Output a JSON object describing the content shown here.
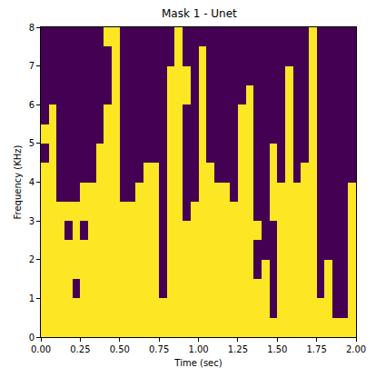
{
  "chart_data": {
    "type": "heatmap",
    "title": "Mask 1 - Unet",
    "x_label": "Time (sec)",
    "y_label": "Frequency (KHz)",
    "xlim": [
      0,
      2
    ],
    "ylim": [
      0,
      8
    ],
    "xticks": [
      {
        "value": 0,
        "label": "0.00"
      },
      0.25,
      {
        "value": 0.5,
        "label": "0.50"
      },
      0.75,
      {
        "value": 1,
        "label": "1.00"
      },
      1.25,
      {
        "value": 1.5,
        "label": "1.50"
      },
      1.75,
      {
        "value": 2,
        "label": "2.00"
      }
    ],
    "yticks": [
      0,
      1,
      2,
      3,
      4,
      5,
      6,
      7,
      8
    ],
    "grid": false,
    "colors": [
      "#440154",
      "#fde725"
    ],
    "color_range": [
      0,
      1
    ],
    "time_edges": [
      0,
      0.05,
      0.1,
      0.15,
      0.2,
      0.25,
      0.3,
      0.35,
      0.4,
      0.45,
      0.5,
      0.55,
      0.6,
      0.65,
      0.7,
      0.75,
      0.8,
      0.85,
      0.9,
      0.95,
      1.0,
      1.05,
      1.1,
      1.15,
      1.2,
      1.25,
      1.3,
      1.35,
      1.4,
      1.45,
      1.5,
      1.55,
      1.6,
      1.65,
      1.7,
      1.75,
      1.8,
      1.85,
      1.9,
      1.95,
      2.0
    ],
    "frequency_edges": [
      0,
      0.5,
      1,
      1.5,
      2,
      2.5,
      3,
      3.5,
      4,
      4.5,
      5,
      5.5,
      6,
      6.5,
      7,
      7.5,
      8
    ],
    "cells_by_time": [
      [
        1,
        1,
        1,
        1,
        1,
        1,
        1,
        1,
        1,
        0,
        1,
        0,
        0,
        0,
        0,
        0
      ],
      [
        1,
        1,
        1,
        1,
        1,
        1,
        1,
        1,
        1,
        1,
        1,
        1,
        0,
        0,
        0,
        0
      ],
      [
        1,
        1,
        1,
        1,
        1,
        1,
        1,
        0,
        0,
        0,
        0,
        0,
        0,
        0,
        0,
        0
      ],
      [
        1,
        1,
        1,
        1,
        1,
        0,
        1,
        0,
        0,
        0,
        0,
        0,
        0,
        0,
        0,
        0
      ],
      [
        1,
        1,
        0,
        1,
        1,
        1,
        1,
        0,
        0,
        0,
        0,
        0,
        0,
        0,
        0,
        0
      ],
      [
        1,
        1,
        1,
        1,
        1,
        0,
        1,
        1,
        0,
        0,
        0,
        0,
        0,
        0,
        0,
        0
      ],
      [
        1,
        1,
        1,
        1,
        1,
        1,
        1,
        1,
        0,
        0,
        0,
        0,
        0,
        0,
        0,
        0
      ],
      [
        1,
        1,
        1,
        1,
        1,
        1,
        1,
        1,
        1,
        1,
        0,
        0,
        0,
        0,
        0,
        0
      ],
      [
        1,
        1,
        1,
        1,
        1,
        1,
        1,
        1,
        1,
        1,
        1,
        1,
        0,
        0,
        0,
        1
      ],
      [
        1,
        1,
        1,
        1,
        1,
        1,
        1,
        1,
        1,
        1,
        1,
        1,
        1,
        1,
        1,
        1
      ],
      [
        1,
        1,
        1,
        1,
        1,
        1,
        1,
        0,
        0,
        0,
        0,
        0,
        0,
        0,
        0,
        0
      ],
      [
        1,
        1,
        1,
        1,
        1,
        1,
        1,
        0,
        0,
        0,
        0,
        0,
        0,
        0,
        0,
        0
      ],
      [
        1,
        1,
        1,
        1,
        1,
        1,
        1,
        1,
        0,
        0,
        0,
        0,
        0,
        0,
        0,
        0
      ],
      [
        1,
        1,
        1,
        1,
        1,
        1,
        1,
        1,
        1,
        0,
        0,
        0,
        0,
        0,
        0,
        0
      ],
      [
        1,
        1,
        1,
        1,
        1,
        1,
        1,
        1,
        1,
        0,
        0,
        0,
        0,
        0,
        0,
        0
      ],
      [
        1,
        1,
        0,
        0,
        0,
        0,
        0,
        0,
        0,
        0,
        0,
        0,
        0,
        0,
        0,
        0
      ],
      [
        1,
        1,
        1,
        1,
        1,
        1,
        1,
        1,
        1,
        1,
        1,
        1,
        1,
        1,
        0,
        0
      ],
      [
        1,
        1,
        1,
        1,
        1,
        1,
        1,
        1,
        1,
        1,
        1,
        1,
        1,
        1,
        1,
        1
      ],
      [
        1,
        1,
        1,
        1,
        1,
        1,
        0,
        0,
        0,
        0,
        0,
        0,
        1,
        1,
        0,
        0
      ],
      [
        1,
        1,
        1,
        1,
        1,
        1,
        1,
        0,
        0,
        0,
        0,
        0,
        0,
        0,
        0,
        0
      ],
      [
        1,
        1,
        1,
        1,
        1,
        1,
        1,
        1,
        1,
        1,
        1,
        1,
        1,
        1,
        1,
        0
      ],
      [
        1,
        1,
        1,
        1,
        1,
        1,
        1,
        1,
        1,
        0,
        0,
        0,
        0,
        0,
        0,
        0
      ],
      [
        1,
        1,
        1,
        1,
        1,
        1,
        1,
        1,
        0,
        0,
        0,
        0,
        0,
        0,
        0,
        0
      ],
      [
        1,
        1,
        1,
        1,
        1,
        1,
        1,
        1,
        0,
        0,
        0,
        0,
        0,
        0,
        0,
        0
      ],
      [
        1,
        1,
        1,
        1,
        1,
        1,
        1,
        0,
        0,
        0,
        0,
        0,
        0,
        0,
        0,
        0
      ],
      [
        1,
        1,
        1,
        1,
        1,
        1,
        1,
        1,
        1,
        1,
        1,
        1,
        0,
        0,
        0,
        0
      ],
      [
        1,
        1,
        1,
        1,
        1,
        1,
        1,
        1,
        1,
        1,
        1,
        1,
        1,
        0,
        0,
        0
      ],
      [
        1,
        1,
        1,
        0,
        0,
        1,
        0,
        0,
        0,
        0,
        0,
        0,
        0,
        0,
        0,
        0
      ],
      [
        1,
        1,
        1,
        1,
        0,
        0,
        0,
        0,
        0,
        0,
        0,
        0,
        0,
        0,
        0,
        0
      ],
      [
        1,
        0,
        0,
        0,
        0,
        0,
        1,
        1,
        1,
        1,
        0,
        0,
        0,
        0,
        0,
        0
      ],
      [
        1,
        1,
        1,
        1,
        1,
        1,
        1,
        1,
        0,
        0,
        0,
        0,
        0,
        0,
        0,
        0
      ],
      [
        1,
        1,
        1,
        1,
        1,
        1,
        1,
        1,
        1,
        1,
        1,
        1,
        1,
        1,
        0,
        0
      ],
      [
        1,
        1,
        1,
        1,
        1,
        1,
        1,
        1,
        0,
        0,
        0,
        0,
        0,
        0,
        0,
        0
      ],
      [
        1,
        1,
        1,
        1,
        1,
        1,
        1,
        1,
        1,
        0,
        0,
        0,
        0,
        0,
        0,
        0
      ],
      [
        1,
        1,
        1,
        1,
        1,
        1,
        1,
        1,
        1,
        1,
        1,
        1,
        1,
        1,
        1,
        1
      ],
      [
        1,
        1,
        0,
        0,
        0,
        0,
        0,
        0,
        0,
        0,
        0,
        0,
        0,
        0,
        0,
        0
      ],
      [
        1,
        1,
        1,
        1,
        0,
        0,
        0,
        0,
        0,
        0,
        0,
        0,
        0,
        0,
        0,
        0
      ],
      [
        1,
        0,
        0,
        0,
        0,
        0,
        0,
        0,
        0,
        0,
        0,
        0,
        0,
        0,
        0,
        0
      ],
      [
        1,
        0,
        0,
        0,
        0,
        0,
        0,
        0,
        0,
        0,
        0,
        0,
        0,
        0,
        0,
        0
      ],
      [
        1,
        1,
        1,
        1,
        1,
        1,
        1,
        1,
        0,
        0,
        0,
        0,
        0,
        0,
        0,
        0
      ]
    ]
  }
}
